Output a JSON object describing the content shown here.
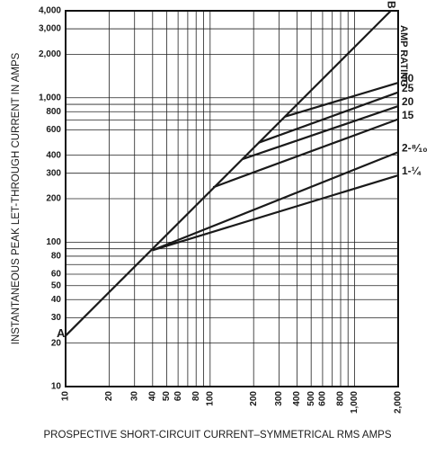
{
  "chart_data": {
    "type": "line",
    "log_x": true,
    "log_y": true,
    "xlabel": "PROSPECTIVE SHORT-CIRCUIT CURRENT–SYMMETRICAL RMS AMPS",
    "ylabel": "INSTANTANEOUS PEAK LET-THROUGH CURRENT IN AMPS",
    "legend_title": "AMP RATING",
    "xlim": [
      10,
      2000
    ],
    "ylim": [
      10,
      4000
    ],
    "xticks": [
      10,
      20,
      30,
      40,
      50,
      60,
      80,
      100,
      200,
      300,
      400,
      500,
      600,
      800,
      {
        "value": 1000,
        "label": "1,000"
      },
      {
        "value": 2000,
        "label": "2,000"
      }
    ],
    "yticks": [
      10,
      20,
      30,
      40,
      50,
      60,
      80,
      100,
      200,
      300,
      400,
      600,
      800,
      {
        "value": 1000,
        "label": "1,000"
      },
      {
        "value": 2000,
        "label": "2,000"
      },
      {
        "value": 3000,
        "label": "3,000"
      },
      {
        "value": 4000,
        "label": "4,000"
      }
    ],
    "minor_xticks": [
      70,
      90,
      700,
      900
    ],
    "minor_yticks": [
      70,
      90,
      700,
      900
    ],
    "grid": true,
    "color": "#1a1a1a",
    "reference_line": {
      "x": [
        10,
        1780
      ],
      "values": [
        22.5,
        4000
      ],
      "start_label": "A",
      "end_label": "B"
    },
    "series": [
      {
        "name": "30",
        "x": [
          330,
          2000
        ],
        "values": [
          740,
          1270
        ]
      },
      {
        "name": "25",
        "x": [
          215,
          2000
        ],
        "values": [
          487,
          1090
        ]
      },
      {
        "name": "20",
        "x": [
          168,
          2000
        ],
        "values": [
          376,
          875
        ]
      },
      {
        "name": "15",
        "x": [
          105,
          2000
        ],
        "values": [
          240,
          710
        ]
      },
      {
        "name": "2-⁸⁄₁₀",
        "x": [
          40,
          2000
        ],
        "values": [
          88,
          420
        ]
      },
      {
        "name": "1-¼",
        "x": [
          40,
          2000
        ],
        "values": [
          88,
          290
        ]
      }
    ]
  }
}
